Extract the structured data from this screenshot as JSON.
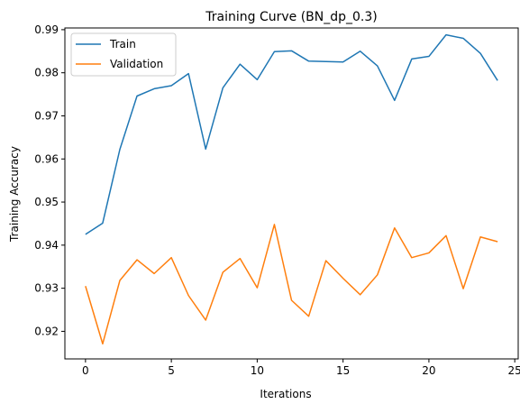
{
  "chart_data": {
    "type": "line",
    "title": "Training Curve (BN_dp_0.3)",
    "xlabel": "Iterations",
    "ylabel": "Training Accuracy",
    "xlim": [
      -1.2,
      25.2
    ],
    "ylim": [
      0.9136,
      0.9904
    ],
    "xticks": [
      0,
      5,
      10,
      15,
      20,
      25
    ],
    "yticks": [
      0.92,
      0.93,
      0.94,
      0.95,
      0.96,
      0.97,
      0.98,
      0.99
    ],
    "ytick_labels": [
      "0.92",
      "0.93",
      "0.94",
      "0.95",
      "0.96",
      "0.97",
      "0.98",
      "0.99"
    ],
    "legend_position": "top-left",
    "x": [
      0,
      1,
      2,
      3,
      4,
      5,
      6,
      7,
      8,
      9,
      10,
      11,
      12,
      13,
      14,
      15,
      16,
      17,
      18,
      19,
      20,
      21,
      22,
      23,
      24
    ],
    "series": [
      {
        "name": "Train",
        "color": "#1f77b4",
        "values": [
          0.9425,
          0.9451,
          0.9622,
          0.9746,
          0.9763,
          0.977,
          0.9798,
          0.9623,
          0.9765,
          0.982,
          0.9784,
          0.9849,
          0.9851,
          0.9827,
          0.9826,
          0.9825,
          0.985,
          0.9816,
          0.9736,
          0.9832,
          0.9838,
          0.9888,
          0.988,
          0.9845,
          0.9782
        ]
      },
      {
        "name": "Validation",
        "color": "#ff7f0e",
        "values": [
          0.9305,
          0.9171,
          0.9318,
          0.9366,
          0.9334,
          0.9371,
          0.9283,
          0.9226,
          0.9337,
          0.9369,
          0.9301,
          0.9448,
          0.9272,
          0.9235,
          0.9364,
          0.9323,
          0.9285,
          0.9331,
          0.944,
          0.9371,
          0.9382,
          0.9422,
          0.9299,
          0.9419,
          0.9408
        ]
      }
    ]
  }
}
